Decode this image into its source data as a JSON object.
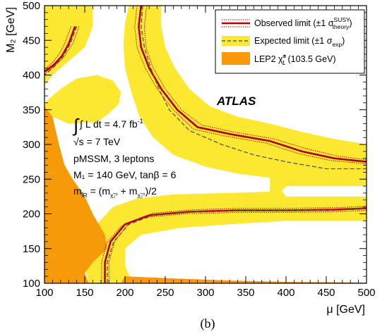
{
  "chart_data": {
    "type": "area",
    "panel_label": "(b)",
    "xlabel": "μ [GeV]",
    "ylabel": "M₂ [GeV]",
    "xlim": [
      100,
      500
    ],
    "ylim": [
      100,
      500
    ],
    "x_ticks": [
      "100",
      "150",
      "200",
      "250",
      "300",
      "350",
      "400",
      "450",
      "500"
    ],
    "y_ticks": [
      "100",
      "150",
      "200",
      "250",
      "300",
      "350",
      "400",
      "450",
      "500"
    ],
    "legend": {
      "position": "top-right",
      "entries": [
        {
          "label": "Observed limit (±1 σ",
          "sup": "SUSY",
          "sub": "theory",
          "tail": ")",
          "style": "solid-dark-red"
        },
        {
          "label": "Expected limit (±1 σ",
          "sub": "exp",
          "tail": ")",
          "style": "dashed-on-yellow"
        },
        {
          "label": "LEP2  χ̃",
          "sup": "±",
          "sub": "1",
          "tail": " (103.5 GeV)",
          "style": "orange-fill"
        }
      ]
    },
    "atlas_label": "ATLAS",
    "annotations": {
      "lumi": "∫ L dt = 4.7 fb",
      "lumi_sup": "-1",
      "energy": "√s = 7 TeV",
      "model": "pMSSM, 3 leptons",
      "m1": "M₁ = 140 GeV, tanβ = 6",
      "slepton": "m",
      "slepton_sub": "l̃R",
      "slepton_tail": " = (m",
      "slepton_sub2": "χ̃₁⁰",
      "slepton_mid": " + m",
      "slepton_sub3": "χ̃₂⁰",
      "slepton_end": ")/2"
    },
    "colors": {
      "observed": "#b30000",
      "expected_band": "#fde831",
      "lep2": "#f79a0a",
      "dashed": "#555555"
    },
    "series": [
      {
        "name": "Observed limit",
        "style": "observed",
        "segments": [
          [
            [
              138,
              470
            ],
            [
              130,
              445
            ],
            [
              122,
              428
            ],
            [
              112,
              415
            ],
            [
              100,
              405
            ]
          ],
          [
            [
              220,
              500
            ],
            [
              217,
              470
            ],
            [
              220,
              440
            ],
            [
              230,
              410
            ],
            [
              245,
              380
            ],
            [
              265,
              350
            ],
            [
              290,
              325
            ],
            [
              330,
              315
            ],
            [
              380,
              305
            ],
            [
              420,
              290
            ],
            [
              460,
              280
            ],
            [
              500,
              275
            ]
          ],
          [
            [
              175,
              100
            ],
            [
              175,
              130
            ],
            [
              182,
              160
            ],
            [
              200,
              185
            ],
            [
              230,
              198
            ],
            [
              280,
              203
            ],
            [
              340,
              205
            ],
            [
              400,
              205
            ],
            [
              460,
              206
            ],
            [
              500,
              208
            ]
          ]
        ]
      },
      {
        "name": "Expected limit",
        "style": "expected",
        "segments": [
          [
            [
              140,
              470
            ],
            [
              132,
              445
            ],
            [
              122,
              425
            ],
            [
              112,
              412
            ],
            [
              100,
              400
            ]
          ],
          [
            [
              222,
              500
            ],
            [
              220,
              470
            ],
            [
              224,
              440
            ],
            [
              232,
              410
            ],
            [
              242,
              380
            ],
            [
              255,
              350
            ],
            [
              280,
              320
            ],
            [
              320,
              300
            ],
            [
              360,
              285
            ],
            [
              400,
              275
            ],
            [
              450,
              265
            ],
            [
              500,
              265
            ]
          ],
          [
            [
              178,
              100
            ],
            [
              178,
              130
            ],
            [
              186,
              160
            ],
            [
              205,
              185
            ],
            [
              235,
              198
            ],
            [
              290,
              203
            ],
            [
              350,
              205
            ],
            [
              410,
              205
            ],
            [
              470,
              206
            ],
            [
              500,
              208
            ]
          ]
        ]
      },
      {
        "name": "Observed limit ±1σ",
        "style": "observed_band",
        "segments": [
          [
            [
              143,
              470
            ],
            [
              135,
              445
            ],
            [
              124,
              426
            ],
            [
              112,
              413
            ],
            [
              100,
              402
            ]
          ],
          [
            [
              133,
              470
            ],
            [
              125,
              445
            ],
            [
              118,
              430
            ],
            [
              110,
              418
            ],
            [
              100,
              408
            ]
          ],
          [
            [
              227,
              500
            ],
            [
              224,
              470
            ],
            [
              226,
              440
            ],
            [
              235,
              410
            ],
            [
              250,
              380
            ],
            [
              270,
              350
            ],
            [
              295,
              328
            ],
            [
              335,
              318
            ],
            [
              385,
              308
            ],
            [
              425,
              294
            ],
            [
              465,
              283
            ],
            [
              500,
              278
            ]
          ],
          [
            [
              215,
              500
            ],
            [
              212,
              470
            ],
            [
              215,
              440
            ],
            [
              225,
              410
            ],
            [
              240,
              380
            ],
            [
              260,
              350
            ],
            [
              285,
              322
            ],
            [
              325,
              312
            ],
            [
              375,
              302
            ],
            [
              415,
              287
            ],
            [
              455,
              277
            ],
            [
              500,
              272
            ]
          ],
          [
            [
              180,
              100
            ],
            [
              180,
              130
            ],
            [
              187,
              160
            ],
            [
              205,
              187
            ],
            [
              235,
              201
            ],
            [
              285,
              206
            ],
            [
              345,
              208
            ],
            [
              405,
              208
            ],
            [
              465,
              209
            ],
            [
              500,
              211
            ]
          ],
          [
            [
              171,
              100
            ],
            [
              171,
              130
            ],
            [
              177,
              158
            ],
            [
              195,
              182
            ],
            [
              225,
              195
            ],
            [
              275,
              200
            ],
            [
              335,
              202
            ],
            [
              395,
              202
            ],
            [
              455,
              203
            ],
            [
              500,
              205
            ]
          ]
        ]
      }
    ],
    "expected_band_polygon": [
      [
        100,
        500
      ],
      [
        160,
        500
      ],
      [
        160,
        470
      ],
      [
        150,
        440
      ],
      [
        130,
        420
      ],
      [
        110,
        400
      ],
      [
        100,
        385
      ],
      [
        100,
        360
      ],
      [
        120,
        380
      ],
      [
        140,
        395
      ],
      [
        165,
        400
      ],
      [
        185,
        392
      ],
      [
        195,
        375
      ],
      [
        192,
        358
      ],
      [
        180,
        345
      ],
      [
        165,
        332
      ],
      [
        130,
        330
      ],
      [
        100,
        345
      ]
    ],
    "expected_band_main": [
      [
        205,
        500
      ],
      [
        245,
        500
      ],
      [
        245,
        470
      ],
      [
        250,
        440
      ],
      [
        262,
        410
      ],
      [
        280,
        380
      ],
      [
        305,
        355
      ],
      [
        340,
        340
      ],
      [
        380,
        330
      ],
      [
        420,
        318
      ],
      [
        460,
        308
      ],
      [
        500,
        300
      ],
      [
        500,
        240
      ],
      [
        460,
        240
      ],
      [
        420,
        240
      ],
      [
        400,
        240
      ],
      [
        395,
        233
      ],
      [
        400,
        225
      ],
      [
        500,
        225
      ],
      [
        500,
        190
      ],
      [
        400,
        190
      ],
      [
        330,
        185
      ],
      [
        270,
        180
      ],
      [
        220,
        170
      ],
      [
        200,
        150
      ],
      [
        200,
        125
      ],
      [
        210,
        100
      ],
      [
        155,
        100
      ],
      [
        150,
        125
      ],
      [
        155,
        155
      ],
      [
        165,
        185
      ],
      [
        185,
        210
      ],
      [
        215,
        222
      ],
      [
        260,
        228
      ],
      [
        330,
        230
      ],
      [
        380,
        232
      ],
      [
        380,
        252
      ],
      [
        340,
        258
      ],
      [
        300,
        268
      ],
      [
        260,
        285
      ],
      [
        235,
        310
      ],
      [
        218,
        340
      ],
      [
        208,
        375
      ],
      [
        200,
        410
      ],
      [
        198,
        445
      ],
      [
        200,
        475
      ]
    ],
    "lep2_polygon": [
      [
        100,
        355
      ],
      [
        110,
        340
      ],
      [
        118,
        300
      ],
      [
        125,
        270
      ],
      [
        135,
        250
      ],
      [
        150,
        225
      ],
      [
        160,
        200
      ],
      [
        170,
        180
      ],
      [
        175,
        170
      ],
      [
        178,
        150
      ],
      [
        160,
        130
      ],
      [
        150,
        115
      ],
      [
        155,
        100
      ],
      [
        100,
        100
      ]
    ],
    "lep2_lower_strip": [
      [
        195,
        100
      ],
      [
        200,
        110
      ],
      [
        260,
        107
      ],
      [
        330,
        104
      ],
      [
        400,
        102
      ],
      [
        500,
        101
      ],
      [
        500,
        100
      ]
    ]
  }
}
